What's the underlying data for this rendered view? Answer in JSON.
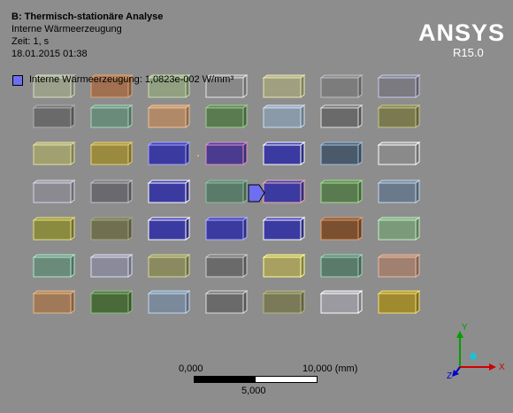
{
  "header": {
    "title": "B: Thermisch-stationäre Analyse",
    "result_name": "Interne Wärmeerzeugung",
    "time": "Zeit: 1, s",
    "date": "18.01.2015 01:38"
  },
  "logo": {
    "brand": "ANSYS",
    "version": "R15.0"
  },
  "legend": {
    "label": "Interne Wärmeerzeugung: 1,0823e-002 W/mm³",
    "color": "#6e6ef0"
  },
  "scale": {
    "left": "0,000",
    "right": "10,000 (mm)",
    "mid": "5,000"
  },
  "triad": {
    "x": "X",
    "y": "Y",
    "z": "Z"
  },
  "blocks": {
    "rows": [
      [
        {
          "fill": "#9aa08a",
          "edge": "#d8e0c8"
        },
        {
          "fill": "#a07050",
          "edge": "#e0a878"
        },
        {
          "fill": "#90a080",
          "edge": "#c8e0b0"
        },
        {
          "fill": "#888888",
          "edge": "#e8e8e8"
        },
        {
          "fill": "#a0a080",
          "edge": "#e8e8b0"
        },
        {
          "fill": "#7c7c7c",
          "edge": "#c0c0c8"
        },
        {
          "fill": "#7a7a80",
          "edge": "#c8c8f0"
        }
      ],
      [
        {
          "fill": "#6a6a6a",
          "edge": "#b0b0b0"
        },
        {
          "fill": "#6a8a7a",
          "edge": "#a8d8c0"
        },
        {
          "fill": "#b08a68",
          "edge": "#f0c098"
        },
        {
          "fill": "#5a7a50",
          "edge": "#a0d090"
        },
        {
          "fill": "#8a9aa8",
          "edge": "#d0e0f0"
        },
        {
          "fill": "#6a6a6a",
          "edge": "#e0e0e0"
        },
        {
          "fill": "#7a7a50",
          "edge": "#c8c888"
        }
      ],
      [
        {
          "fill": "#a0a070",
          "edge": "#e0e0a0"
        },
        {
          "fill": "#9a8a40",
          "edge": "#e8d070"
        },
        {
          "fill": "#3a3aa0",
          "edge": "#a8a8ff"
        },
        {
          "fill": "#4a3a90",
          "edge": "#e090c0"
        },
        {
          "fill": "#3a3aa0",
          "edge": "#ffffff"
        },
        {
          "fill": "#4a5a6a",
          "edge": "#a0c0e0"
        },
        {
          "fill": "#8a8a8a",
          "edge": "#ffffff"
        }
      ],
      [
        {
          "fill": "#8a8a90",
          "edge": "#d8d8e8"
        },
        {
          "fill": "#6a6a6e",
          "edge": "#c0c0c8"
        },
        {
          "fill": "#3a3aa0",
          "edge": "#ffffff"
        },
        {
          "fill": "#5a7a6a",
          "edge": "#90c0a0"
        },
        {
          "fill": "#3a3aa0",
          "edge": "#f0b0b0"
        },
        {
          "fill": "#5a7a50",
          "edge": "#a0e090"
        },
        {
          "fill": "#6a7a8a",
          "edge": "#c0d8f0"
        }
      ],
      [
        {
          "fill": "#8a8a40",
          "edge": "#e8e080"
        },
        {
          "fill": "#707050",
          "edge": "#a8a888"
        },
        {
          "fill": "#3a3aa0",
          "edge": "#ffffff"
        },
        {
          "fill": "#3a3aa0",
          "edge": "#b0b0ff"
        },
        {
          "fill": "#3a3aa0",
          "edge": "#ffffff"
        },
        {
          "fill": "#7a5030",
          "edge": "#e0a070"
        },
        {
          "fill": "#7a9a7a",
          "edge": "#c0f0c0"
        }
      ],
      [
        {
          "fill": "#6a8a7a",
          "edge": "#b0e8d0"
        },
        {
          "fill": "#8a8a9a",
          "edge": "#e0e0f8"
        },
        {
          "fill": "#8a8a60",
          "edge": "#d8d898"
        },
        {
          "fill": "#6a6a6a",
          "edge": "#d0d0d0"
        },
        {
          "fill": "#a8a060",
          "edge": "#ffff90"
        },
        {
          "fill": "#5a7a6a",
          "edge": "#a0d8c0"
        },
        {
          "fill": "#a08070",
          "edge": "#f0b8a0"
        }
      ],
      [
        {
          "fill": "#a07a58",
          "edge": "#e8b888"
        },
        {
          "fill": "#4a6a3a",
          "edge": "#90c080"
        },
        {
          "fill": "#7a8a9a",
          "edge": "#c0d8f0"
        },
        {
          "fill": "#6a6a6a",
          "edge": "#e0e0e0"
        },
        {
          "fill": "#7a7a58",
          "edge": "#b8b888"
        },
        {
          "fill": "#9a9aa0",
          "edge": "#ffffff"
        },
        {
          "fill": "#a08a30",
          "edge": "#f0e070"
        }
      ]
    ]
  }
}
